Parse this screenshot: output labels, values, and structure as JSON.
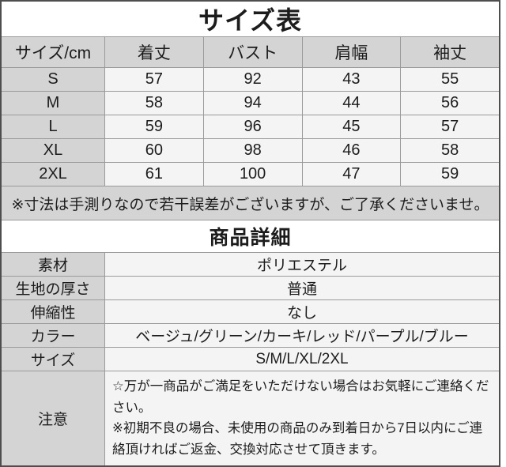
{
  "size_section": {
    "title": "サイズ表",
    "columns": [
      "サイズ/cm",
      "着丈",
      "バスト",
      "肩幅",
      "袖丈"
    ],
    "rows": [
      {
        "size": "S",
        "values": [
          "57",
          "92",
          "43",
          "55"
        ]
      },
      {
        "size": "M",
        "values": [
          "58",
          "94",
          "44",
          "56"
        ]
      },
      {
        "size": "L",
        "values": [
          "59",
          "96",
          "45",
          "57"
        ]
      },
      {
        "size": "XL",
        "values": [
          "60",
          "98",
          "46",
          "58"
        ]
      },
      {
        "size": "2XL",
        "values": [
          "61",
          "100",
          "47",
          "59"
        ]
      }
    ],
    "note": "※寸法は手測りなので若干誤差がございますが、ご了承くださいませ。"
  },
  "details_section": {
    "title": "商品詳細",
    "rows": [
      {
        "label": "素材",
        "value": "ポリエステル"
      },
      {
        "label": "生地の厚さ",
        "value": "普通"
      },
      {
        "label": "伸縮性",
        "value": "なし"
      },
      {
        "label": "カラー",
        "value": "ベージュ/グリーン/カーキ/レッド/パープル/ブルー"
      },
      {
        "label": "サイズ",
        "value": "S/M/L/XL/2XL"
      }
    ],
    "caution": {
      "label": "注意",
      "lines": [
        "☆万が一商品がご満足をいただけない場合はお気軽にご連絡ください。",
        "※初期不良の場合、未使用の商品のみ到着日から7日以内にご連絡頂ければご返金、交換対応させて頂きます。"
      ]
    }
  },
  "colors": {
    "label_bg": "#d4d4d4",
    "value_bg": "#f4f4f4",
    "gridline": "#9a9a9a",
    "outer_border": "#4e4e4e",
    "text": "#1c1c1c"
  }
}
